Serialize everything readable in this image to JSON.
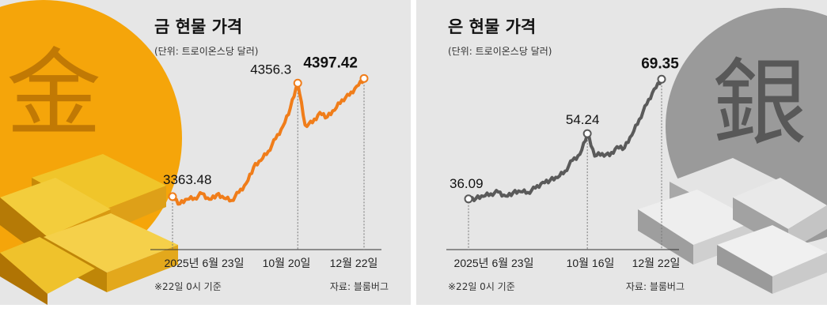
{
  "chart_data": [
    {
      "type": "line",
      "title": "금 현물 가격",
      "subtitle": "(단위: 트로이온스당 달러)",
      "note": "※22일 0시 기준",
      "source": "자료: 블룸버그",
      "hanja": "金",
      "color": "#f07d1a",
      "panel_accent": "#f5a50a",
      "x_ticks": [
        "2025년 6월 23일",
        "10월 20일",
        "12월 22일"
      ],
      "annotations": [
        {
          "label": "3363.48",
          "value": 3363.48
        },
        {
          "label": "4356.3",
          "value": 4356.3
        },
        {
          "label": "4397.42",
          "value": 4397.42
        }
      ],
      "ylim": [
        2900,
        4600
      ],
      "x": [
        "2025-06-23",
        "2025-06-30",
        "2025-07-07",
        "2025-07-14",
        "2025-07-21",
        "2025-07-28",
        "2025-08-04",
        "2025-08-11",
        "2025-08-18",
        "2025-08-25",
        "2025-09-01",
        "2025-09-08",
        "2025-09-15",
        "2025-09-22",
        "2025-09-29",
        "2025-10-06",
        "2025-10-13",
        "2025-10-20",
        "2025-10-27",
        "2025-11-03",
        "2025-11-10",
        "2025-11-17",
        "2025-11-24",
        "2025-12-01",
        "2025-12-08",
        "2025-12-15",
        "2025-12-22"
      ],
      "values": [
        3363.48,
        3300,
        3340,
        3350,
        3390,
        3340,
        3380,
        3350,
        3330,
        3400,
        3480,
        3620,
        3680,
        3760,
        3870,
        3980,
        4140,
        4356.3,
        3990,
        4010,
        4100,
        4060,
        4120,
        4210,
        4250,
        4330,
        4397.42
      ]
    },
    {
      "type": "line",
      "title": "은 현물 가격",
      "subtitle": "(단위: 트로이온스당 달러)",
      "note": "※22일 0시 기준",
      "source": "자료: 블룸버그",
      "hanja": "銀",
      "color": "#5a5a5a",
      "panel_accent": "#9a9a9a",
      "x_ticks": [
        "2025년 6월 23일",
        "10월 16일",
        "12월 22일"
      ],
      "annotations": [
        {
          "label": "36.09",
          "value": 36.09
        },
        {
          "label": "54.24",
          "value": 54.24
        },
        {
          "label": "69.35",
          "value": 69.35
        }
      ],
      "ylim": [
        22,
        76
      ],
      "x": [
        "2025-06-23",
        "2025-06-30",
        "2025-07-07",
        "2025-07-14",
        "2025-07-21",
        "2025-07-28",
        "2025-08-04",
        "2025-08-11",
        "2025-08-18",
        "2025-08-25",
        "2025-09-01",
        "2025-09-08",
        "2025-09-15",
        "2025-09-22",
        "2025-09-29",
        "2025-10-06",
        "2025-10-16",
        "2025-10-23",
        "2025-10-30",
        "2025-11-06",
        "2025-11-13",
        "2025-11-20",
        "2025-11-27",
        "2025-12-04",
        "2025-12-11",
        "2025-12-18",
        "2025-12-22"
      ],
      "values": [
        36.09,
        36.2,
        36.8,
        37.5,
        38.0,
        36.9,
        37.8,
        38.1,
        37.9,
        39.1,
        40.7,
        41.3,
        42.0,
        43.8,
        46.8,
        48.5,
        54.24,
        48.0,
        48.7,
        48.1,
        50.6,
        50.3,
        53.8,
        58.2,
        62.4,
        66.6,
        69.35
      ]
    }
  ]
}
